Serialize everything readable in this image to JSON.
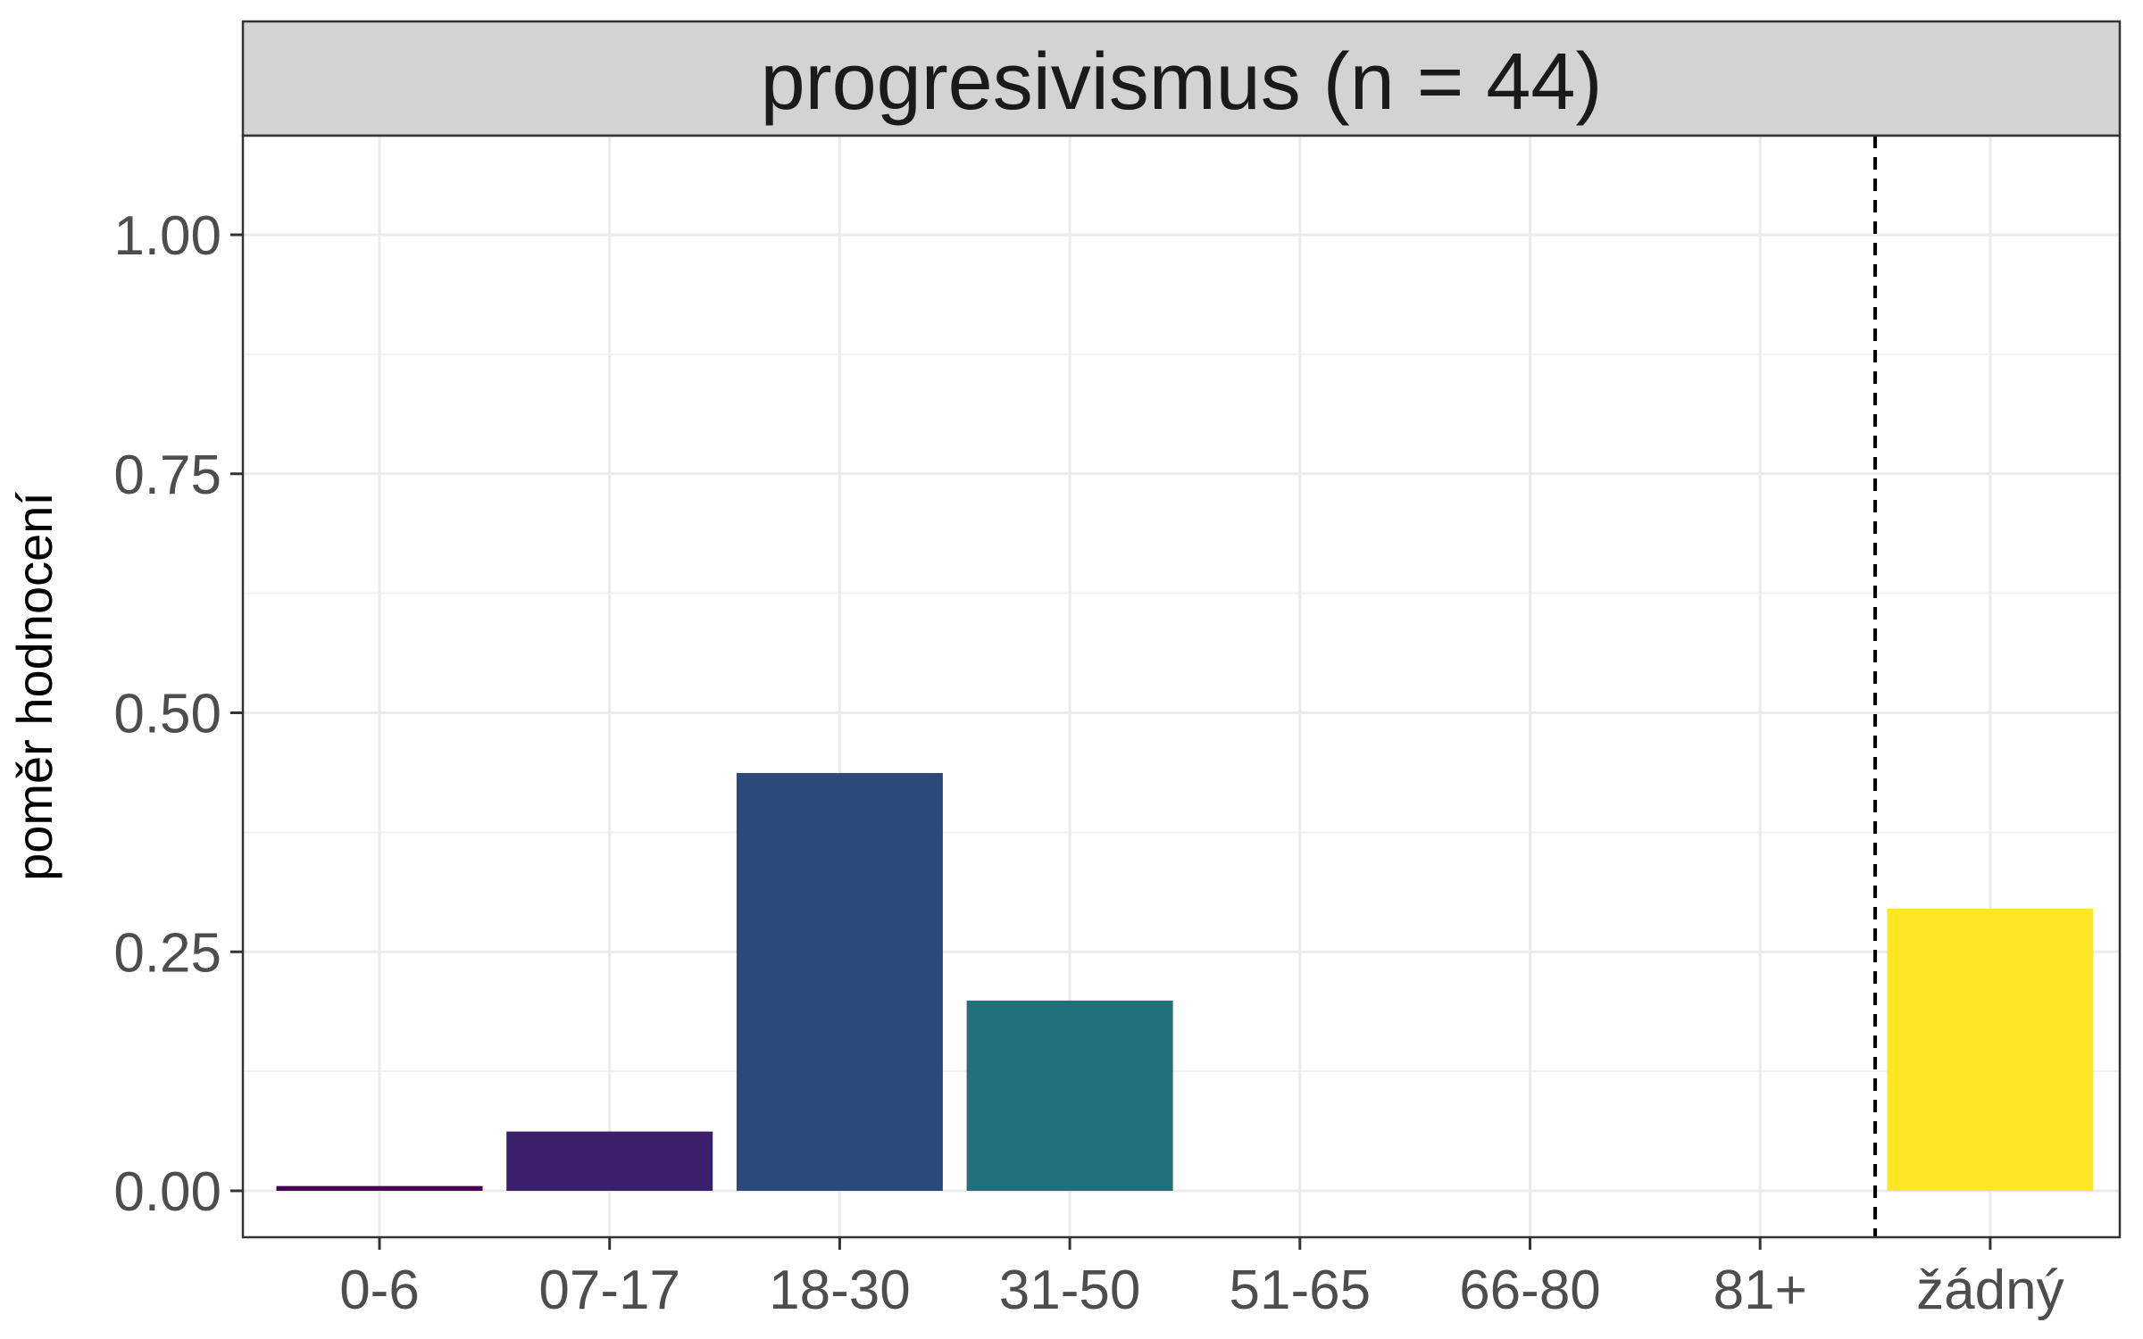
{
  "chart_data": {
    "type": "bar",
    "title": "progresivismus (n = 44)",
    "xlabel": "",
    "ylabel": "poměr hodnocení",
    "ylim": [
      0,
      1.1
    ],
    "yticks": [
      "0.00",
      "0.25",
      "0.50",
      "0.75",
      "1.00"
    ],
    "ytick_values": [
      0,
      0.25,
      0.5,
      0.75,
      1.0
    ],
    "categories": [
      "0-6",
      "07-17",
      "18-30",
      "31-50",
      "51-65",
      "66-80",
      "81+",
      "žádný"
    ],
    "values": [
      0.005,
      0.062,
      0.437,
      0.199,
      0,
      0,
      0,
      0.295
    ],
    "colors": [
      "#440154",
      "#3b1f6b",
      "#2c4a79",
      "#21707c",
      "#26908d",
      "#35b779",
      "#8fd744",
      "#fde725"
    ],
    "reference_line": {
      "style": "dashed",
      "between_categories": [
        "81+",
        "žádný"
      ]
    },
    "grid": true
  }
}
